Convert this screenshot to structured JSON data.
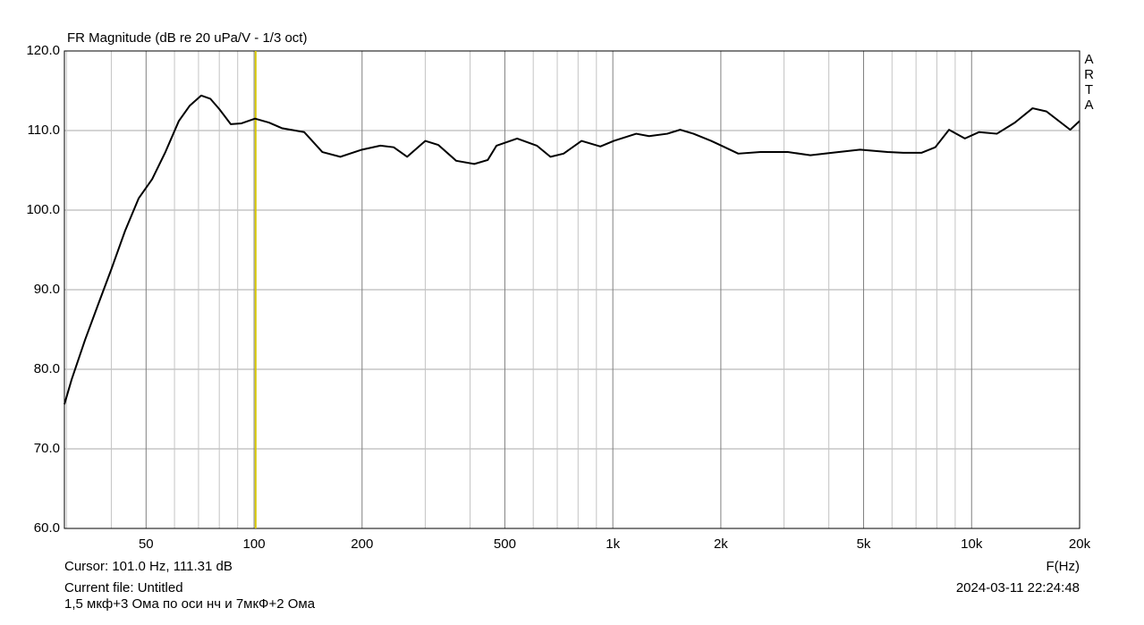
{
  "chart_data": {
    "type": "line",
    "title": "FR Magnitude (dB re 20 uPa/V - 1/3 oct)",
    "xlabel": "F(Hz)",
    "log_x": true,
    "grid": true,
    "xlim": [
      29.6,
      20000
    ],
    "ylim": [
      60,
      120
    ],
    "xticks": [
      50,
      100,
      200,
      500,
      {
        "value": 1000,
        "label": "1k"
      },
      {
        "value": 2000,
        "label": "2k"
      },
      {
        "value": 5000,
        "label": "5k"
      },
      {
        "value": 10000,
        "label": "10k"
      },
      {
        "value": 20000,
        "label": "20k"
      }
    ],
    "x_minor_ticks": [
      30,
      40,
      60,
      70,
      80,
      90,
      300,
      400,
      600,
      700,
      800,
      900,
      3000,
      4000,
      6000,
      7000,
      8000,
      9000
    ],
    "yticks": [
      {
        "value": 60,
        "label": "60.0"
      },
      {
        "value": 70,
        "label": "70.0"
      },
      {
        "value": 80,
        "label": "80.0"
      },
      {
        "value": 90,
        "label": "90.0"
      },
      {
        "value": 100,
        "label": "100.0"
      },
      {
        "value": 110,
        "label": "110.0"
      },
      {
        "value": 120,
        "label": "120.0"
      }
    ],
    "cursor_x": 101.0,
    "cursor_color": "#d8c800",
    "series": [
      {
        "color": "#000000",
        "x": [
          29.6,
          31,
          33.8,
          36.8,
          40.1,
          43.7,
          47.7,
          52,
          56.6,
          61.7,
          66.1,
          71.2,
          75.5,
          80,
          86.1,
          92.2,
          100.6,
          110,
          119.5,
          138,
          155,
          174,
          200,
          225,
          245,
          267,
          300,
          326,
          366,
          411,
          448,
          474,
          541,
          614,
          670,
          729,
          818,
          923,
          1006,
          1162,
          1262,
          1418,
          1540,
          1678,
          1880,
          2052,
          2237,
          2580,
          3074,
          3553,
          4078,
          4887,
          5831,
          6454,
          7244,
          7921,
          8650,
          9578,
          10480,
          11760,
          13200,
          14790,
          16170,
          18830,
          20000
        ],
        "values": [
          75.6,
          78.7,
          83.7,
          88.2,
          92.7,
          97.4,
          101.5,
          103.9,
          107.3,
          111.2,
          113.1,
          114.4,
          114.0,
          112.7,
          110.8,
          110.9,
          111.5,
          111.0,
          110.3,
          109.8,
          107.3,
          106.7,
          107.6,
          108.1,
          107.9,
          106.7,
          108.7,
          108.2,
          106.2,
          105.8,
          106.3,
          108.1,
          109.0,
          108.1,
          106.7,
          107.1,
          108.7,
          108.0,
          108.7,
          109.6,
          109.3,
          109.6,
          110.1,
          109.6,
          108.7,
          107.9,
          107.1,
          107.3,
          107.3,
          106.9,
          107.2,
          107.6,
          107.3,
          107.2,
          107.2,
          107.9,
          110.1,
          109.0,
          109.8,
          109.6,
          111.0,
          112.8,
          112.4,
          110.1,
          111.2
        ]
      }
    ]
  },
  "footer": {
    "cursor": "Cursor: 101.0 Hz, 111.31 dB",
    "file": "Current file: Untitled",
    "note": "1,5 мкф+3 Ома по оси нч и 7мкФ+2 Ома",
    "timestamp": "2024-03-11  22:24:48"
  },
  "logo": "ARTA"
}
